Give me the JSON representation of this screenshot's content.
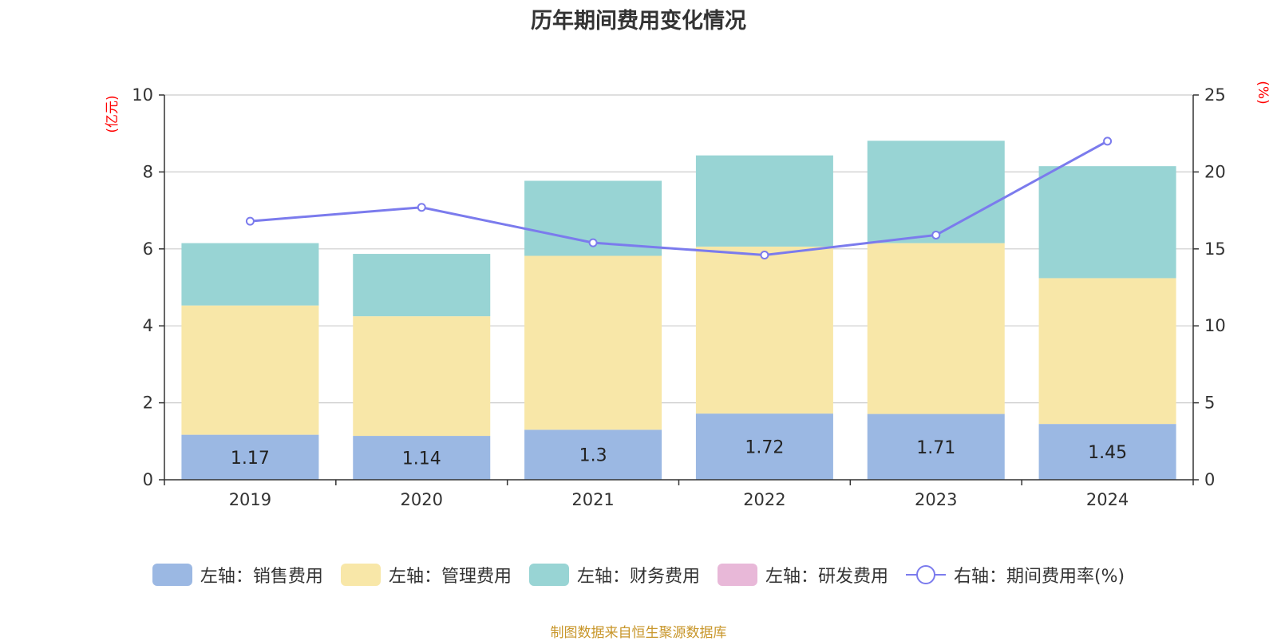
{
  "chart_data": {
    "type": "bar",
    "stacked": true,
    "title": "历年期间费用变化情况",
    "categories": [
      "2019",
      "2020",
      "2021",
      "2022",
      "2023",
      "2024"
    ],
    "left_axis": {
      "unit": "(亿元)",
      "ylim": [
        0,
        10
      ],
      "ticks": [
        0,
        2,
        4,
        6,
        8,
        10
      ]
    },
    "right_axis": {
      "unit": "(%)",
      "ylim": [
        0,
        25
      ],
      "ticks": [
        0,
        5,
        10,
        15,
        20,
        25
      ]
    },
    "grid": true,
    "legend_position": "bottom",
    "series": [
      {
        "name": "左轴：销售费用",
        "axis": "left",
        "color": "#9bb8e3",
        "values": [
          1.17,
          1.14,
          1.3,
          1.72,
          1.71,
          1.45
        ],
        "labels": [
          "1.17",
          "1.14",
          "1.3",
          "1.72",
          "1.71",
          "1.45"
        ]
      },
      {
        "name": "左轴：管理费用",
        "axis": "left",
        "color": "#f8e7a8",
        "values": [
          3.36,
          3.11,
          4.52,
          4.34,
          4.44,
          3.79
        ]
      },
      {
        "name": "左轴：财务费用",
        "axis": "left",
        "color": "#98d4d4",
        "values": [
          1.62,
          1.62,
          1.95,
          2.37,
          2.66,
          2.91
        ]
      },
      {
        "name": "左轴：研发费用",
        "axis": "left",
        "color": "#e8b8d8",
        "values": [
          0,
          0,
          0,
          0,
          0,
          0
        ]
      },
      {
        "name": "右轴：期间费用率(%)",
        "axis": "right",
        "type": "line",
        "color": "#7b7bed",
        "values": [
          16.8,
          17.7,
          15.4,
          14.6,
          15.9,
          22.0
        ]
      }
    ]
  },
  "source_note": "制图数据来自恒生聚源数据库"
}
